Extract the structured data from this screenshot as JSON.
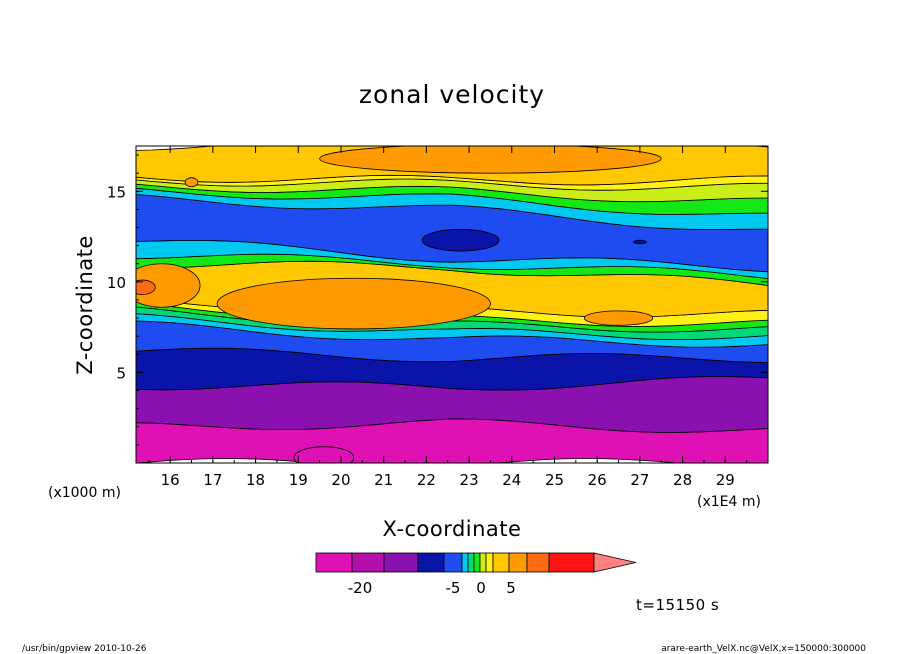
{
  "chart_data": {
    "type": "contour",
    "title": "zonal velocity",
    "xlabel": "X-coordinate",
    "ylabel": "Z-coordinate",
    "x_unit": "(x1E4 m)",
    "y_unit": "(x1000 m)",
    "xlim": [
      15.2,
      30.0
    ],
    "ylim": [
      0,
      17.5
    ],
    "x_ticks": [
      "16",
      "17",
      "18",
      "19",
      "20",
      "21",
      "22",
      "23",
      "24",
      "25",
      "26",
      "27",
      "28",
      "29"
    ],
    "y_ticks": [
      "5",
      "10",
      "15"
    ],
    "colorbar": {
      "levels": [
        -25,
        -20,
        -15,
        -10,
        -5,
        -4,
        -3,
        -2,
        -1,
        0,
        1,
        2,
        5,
        10,
        15
      ],
      "colors": [
        "#e011b4",
        "#b40eab",
        "#8a10b0",
        "#0a14a8",
        "#1e4cf0",
        "#00c8f0",
        "#00d87a",
        "#14e814",
        "#ccee18",
        "#fff018",
        "#ffc800",
        "#ff9a00",
        "#ff6a12",
        "#ff1414",
        "#ff8080"
      ],
      "labels": [
        "-20",
        "-5",
        "0",
        "5"
      ]
    },
    "bands": [
      {
        "color": "#e011b4",
        "from": [
          0,
          0,
          0
        ],
        "to": [
          2.0,
          2.2,
          1.8
        ]
      },
      {
        "color": "#8a10b0",
        "from": [
          2.0,
          2.2,
          1.8
        ],
        "to": [
          4.3,
          4.2,
          4.6
        ]
      },
      {
        "color": "#0a14a8",
        "from": [
          4.3,
          4.2,
          4.6
        ],
        "to": [
          6.2,
          5.8,
          5.8
        ]
      },
      {
        "color": "#1e4cf0",
        "from": [
          6.2,
          5.8,
          5.8
        ],
        "to": [
          7.6,
          6.8,
          6.6
        ]
      },
      {
        "color": "#00c8f0",
        "from": [
          7.6,
          6.8,
          6.6
        ],
        "to": [
          8.0,
          7.2,
          7.0
        ]
      },
      {
        "color": "#00d87a",
        "from": [
          8.0,
          7.2,
          7.0
        ],
        "to": [
          8.4,
          7.6,
          7.4
        ]
      },
      {
        "color": "#14e814",
        "from": [
          8.4,
          7.6,
          7.4
        ],
        "to": [
          8.7,
          7.9,
          7.7
        ]
      },
      {
        "color": "#fff018",
        "from": [
          8.7,
          7.9,
          7.7
        ],
        "to": [
          9.0,
          8.4,
          8.2
        ]
      },
      {
        "color": "#ffc800",
        "from": [
          9.0,
          8.4,
          8.2
        ],
        "to": [
          11.0,
          10.8,
          9.8
        ]
      },
      {
        "color": "#14e814",
        "from": [
          11.0,
          10.8,
          9.8
        ],
        "to": [
          11.5,
          11.0,
          10.3
        ]
      },
      {
        "color": "#00c8f0",
        "from": [
          11.5,
          11.0,
          10.3
        ],
        "to": [
          12.3,
          11.3,
          10.8
        ]
      },
      {
        "color": "#1e4cf0",
        "from": [
          12.3,
          11.3,
          10.8
        ],
        "to": [
          14.6,
          14.0,
          12.8
        ]
      },
      {
        "color": "#00c8f0",
        "from": [
          14.6,
          14.0,
          12.8
        ],
        "to": [
          15.0,
          14.6,
          13.6
        ]
      },
      {
        "color": "#14e814",
        "from": [
          15.0,
          14.6,
          13.6
        ],
        "to": [
          15.3,
          15.0,
          14.4
        ]
      },
      {
        "color": "#ccee18",
        "from": [
          15.3,
          15.0,
          14.4
        ],
        "to": [
          15.6,
          15.4,
          15.2
        ]
      },
      {
        "color": "#fff018",
        "from": [
          15.6,
          15.4,
          15.2
        ],
        "to": [
          15.8,
          15.6,
          15.6
        ]
      },
      {
        "color": "#ffc800",
        "from": [
          15.8,
          15.6,
          15.6
        ],
        "to": [
          17.5,
          17.5,
          17.5
        ]
      }
    ],
    "blobs": [
      {
        "color": "#ff9a00",
        "cx": 20.3,
        "cy": 8.8,
        "rx": 3.2,
        "ry": 1.4
      },
      {
        "color": "#ff9a00",
        "cx": 15.8,
        "cy": 9.8,
        "rx": 0.9,
        "ry": 1.2
      },
      {
        "color": "#ff6a12",
        "cx": 15.35,
        "cy": 9.7,
        "rx": 0.3,
        "ry": 0.4
      },
      {
        "color": "#ff9a00",
        "cx": 26.5,
        "cy": 8.0,
        "rx": 0.8,
        "ry": 0.4
      },
      {
        "color": "#0a14a8",
        "cx": 22.8,
        "cy": 12.3,
        "rx": 0.9,
        "ry": 0.6
      },
      {
        "color": "#0a14a8",
        "cx": 27.0,
        "cy": 12.2,
        "rx": 0.15,
        "ry": 0.1
      },
      {
        "color": "#ff9a00",
        "cx": 23.5,
        "cy": 16.8,
        "rx": 4.0,
        "ry": 0.8
      },
      {
        "color": "#e011b4",
        "cx": 19.6,
        "cy": 0.3,
        "rx": 0.7,
        "ry": 0.6
      },
      {
        "color": "#ff9a00",
        "cx": 16.5,
        "cy": 15.5,
        "rx": 0.15,
        "ry": 0.25
      }
    ],
    "time_label": "t=15150 s"
  },
  "footer": {
    "left": "/usr/bin/gpview   2010-10-26",
    "right": "arare-earth_VelX.nc@VelX,x=150000:300000"
  }
}
